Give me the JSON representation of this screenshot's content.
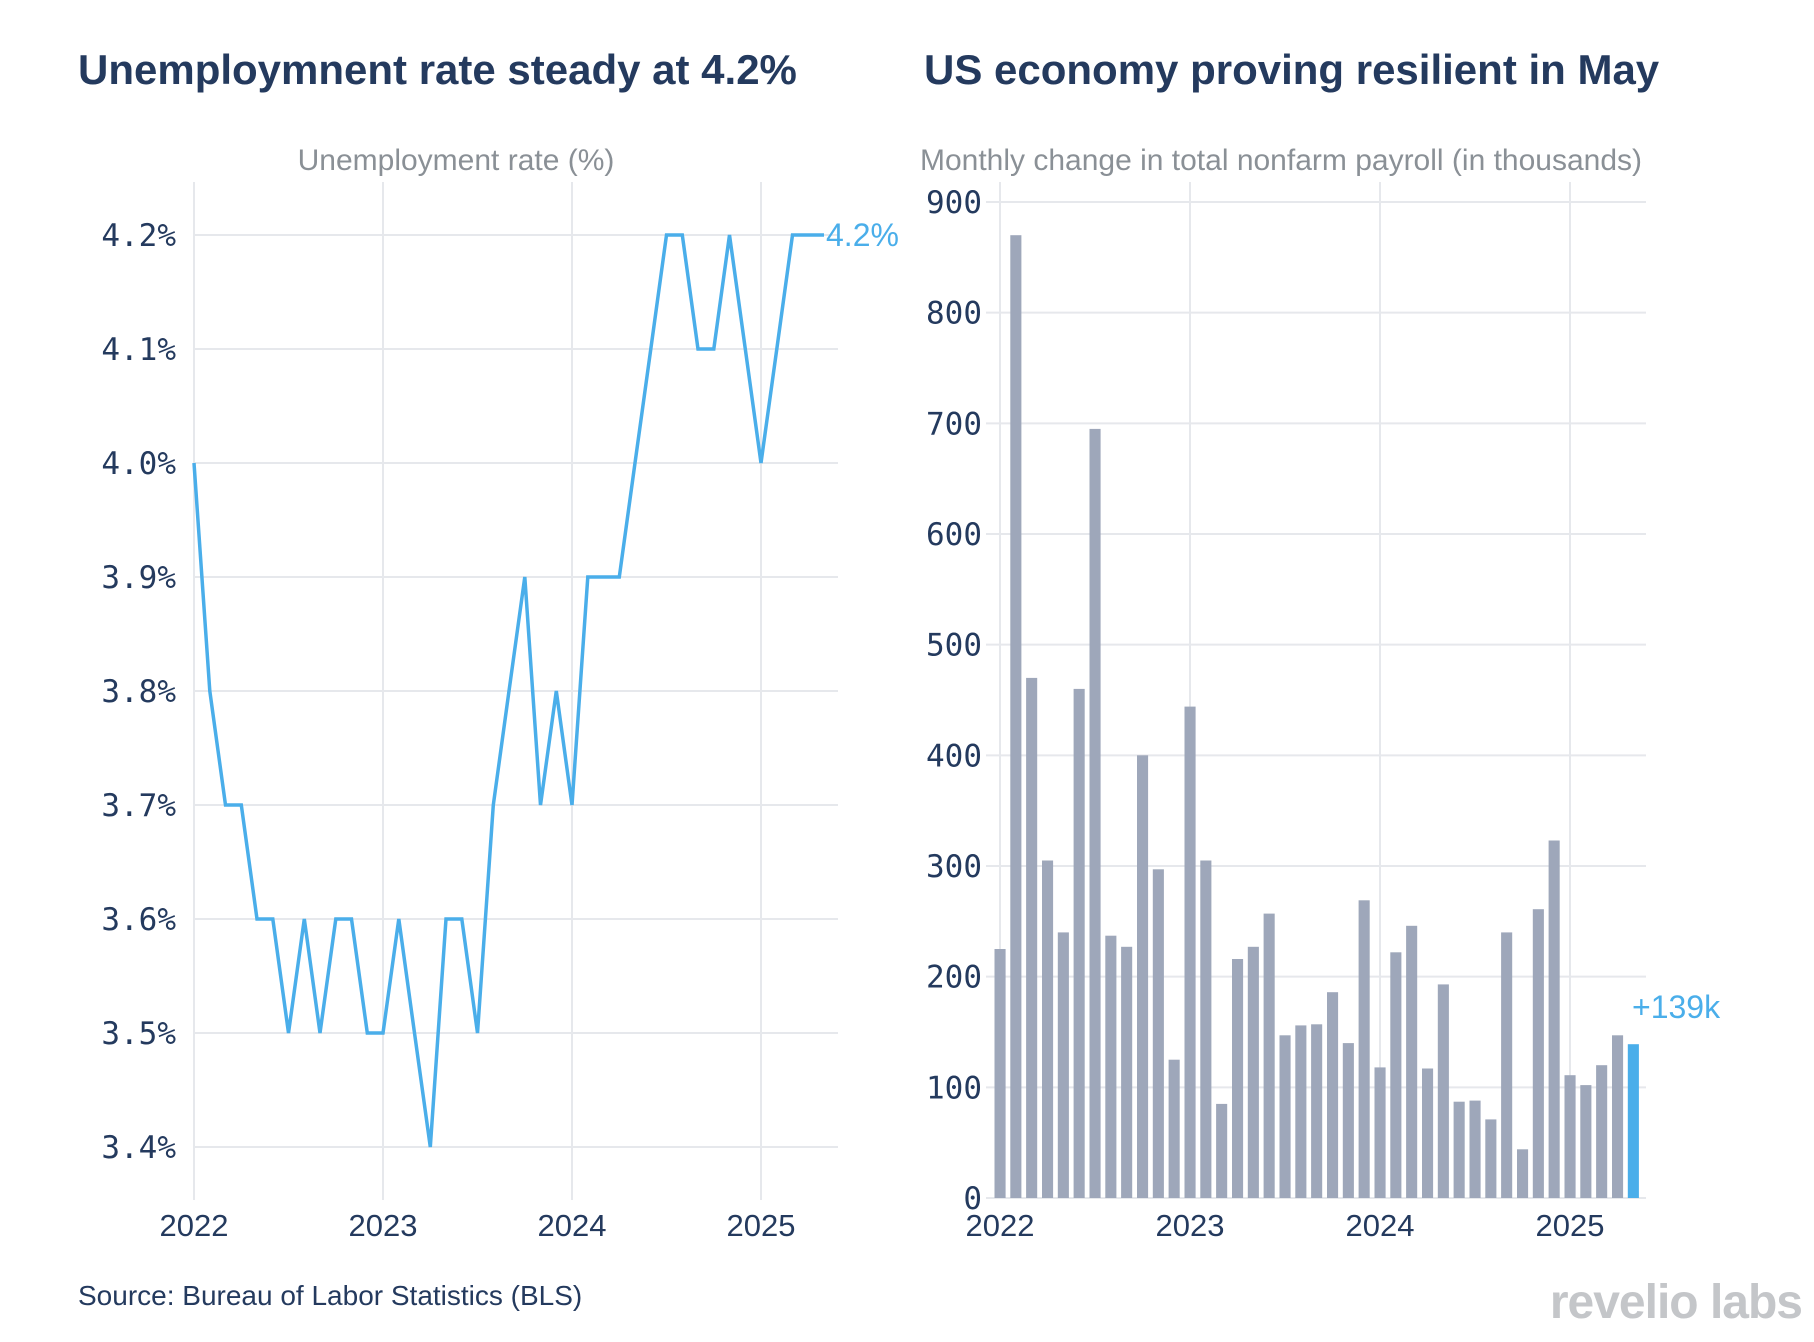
{
  "left": {
    "title": "Unemploymnent rate steady at 4.2%",
    "chart_data": {
      "type": "line",
      "subtitle": "Unemployment rate (%)",
      "x_ticks": [
        "2022",
        "2023",
        "2024",
        "2025"
      ],
      "y_ticks": [
        "3.4%",
        "3.5%",
        "3.6%",
        "3.7%",
        "3.8%",
        "3.9%",
        "4.0%",
        "4.1%",
        "4.2%"
      ],
      "ylim": [
        3.4,
        4.2
      ],
      "x_start": "2022-01",
      "series": [
        {
          "values": [
            4.0,
            3.8,
            3.7,
            3.7,
            3.6,
            3.6,
            3.5,
            3.6,
            3.5,
            3.6,
            3.6,
            3.5,
            3.5,
            3.6,
            3.5,
            3.4,
            3.6,
            3.6,
            3.5,
            3.7,
            3.8,
            3.9,
            3.7,
            3.8,
            3.7,
            3.9,
            3.9,
            3.9,
            4.0,
            4.1,
            4.2,
            4.2,
            4.1,
            4.1,
            4.2,
            4.1,
            4.0,
            4.1,
            4.2,
            4.2,
            4.2
          ],
          "color": "#4aaeea"
        }
      ],
      "end_label": "4.2%",
      "grid": true
    }
  },
  "right": {
    "title": "US economy proving resilient in May",
    "chart_data": {
      "type": "bar",
      "subtitle": "Monthly change in total nonfarm payroll (in thousands)",
      "x_ticks": [
        "2022",
        "2023",
        "2024",
        "2025"
      ],
      "y_ticks": [
        "0",
        "100",
        "200",
        "300",
        "400",
        "500",
        "600",
        "700",
        "800",
        "900"
      ],
      "ylim": [
        0,
        900
      ],
      "x_start": "2022-01",
      "values": [
        225,
        870,
        470,
        305,
        240,
        460,
        695,
        237,
        227,
        400,
        297,
        125,
        444,
        305,
        85,
        216,
        227,
        257,
        147,
        156,
        157,
        186,
        140,
        269,
        118,
        222,
        246,
        117,
        193,
        87,
        88,
        71,
        240,
        44,
        261,
        323,
        111,
        102,
        120,
        147,
        139
      ],
      "bar_color": "#9ea7ba",
      "highlight_color": "#4aaeea",
      "end_label": "+139k",
      "grid": true
    }
  },
  "source": "Source: Bureau of Labor Statistics (BLS)",
  "logo": "revelio labs"
}
